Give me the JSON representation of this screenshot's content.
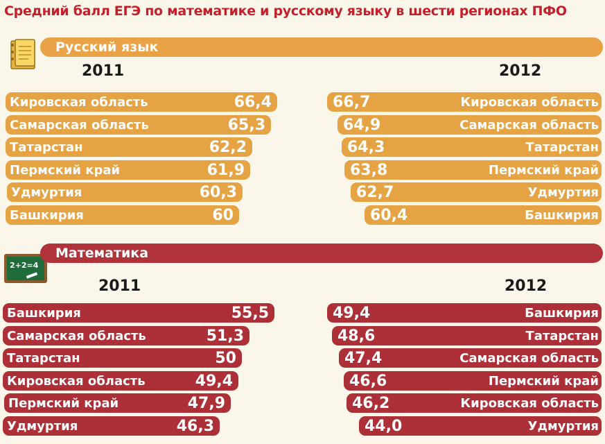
{
  "title": "Средний балл ЕГЭ по математике и русскому языку в шести регионах ПФО",
  "colors": {
    "russian": "#e5a343",
    "math": "#ad2f37",
    "title": "#c4202b"
  },
  "icons": {
    "russian": "notebook-icon",
    "math": "chalkboard-icon"
  },
  "chalkboard_text": "2+2=4",
  "chart_data": [
    {
      "type": "bar",
      "title": "Русский язык",
      "panels": [
        {
          "year": "2011",
          "categories": [
            "Кировская область",
            "Самарская область",
            "Татарстан",
            "Пермский край",
            "Удмуртия",
            "Башкирия"
          ],
          "values": [
            66.4,
            65.3,
            62.2,
            61.9,
            60.3,
            60
          ],
          "value_labels": [
            "66,4",
            "65,3",
            "62,2",
            "61,9",
            "60,3",
            "60"
          ]
        },
        {
          "year": "2012",
          "categories": [
            "Кировская область",
            "Самарская область",
            "Татарстан",
            "Пермский край",
            "Удмуртия",
            "Башкирия"
          ],
          "values": [
            66.7,
            64.9,
            64.3,
            63.8,
            62.7,
            60.4
          ],
          "value_labels": [
            "66,7",
            "64,9",
            "64,3",
            "63,8",
            "62,7",
            "60,4"
          ]
        }
      ]
    },
    {
      "type": "bar",
      "title": "Математика",
      "panels": [
        {
          "year": "2011",
          "categories": [
            "Башкирия",
            "Самарская область",
            "Татарстан",
            "Кировская область",
            "Пермский край",
            "Удмуртия"
          ],
          "values": [
            55.5,
            51.3,
            50,
            49.4,
            47.9,
            46.3
          ],
          "value_labels": [
            "55,5",
            "51,3",
            "50",
            "49,4",
            "47,9",
            "46,3"
          ]
        },
        {
          "year": "2012",
          "categories": [
            "Башкирия",
            "Татарстан",
            "Самарская область",
            "Пермский край",
            "Кировская область",
            "Удмуртия"
          ],
          "values": [
            49.4,
            48.6,
            47.4,
            46.6,
            46.2,
            44.0
          ],
          "value_labels": [
            "49,4",
            "48,6",
            "47,4",
            "46,6",
            "46,2",
            "44,0"
          ]
        }
      ]
    }
  ]
}
